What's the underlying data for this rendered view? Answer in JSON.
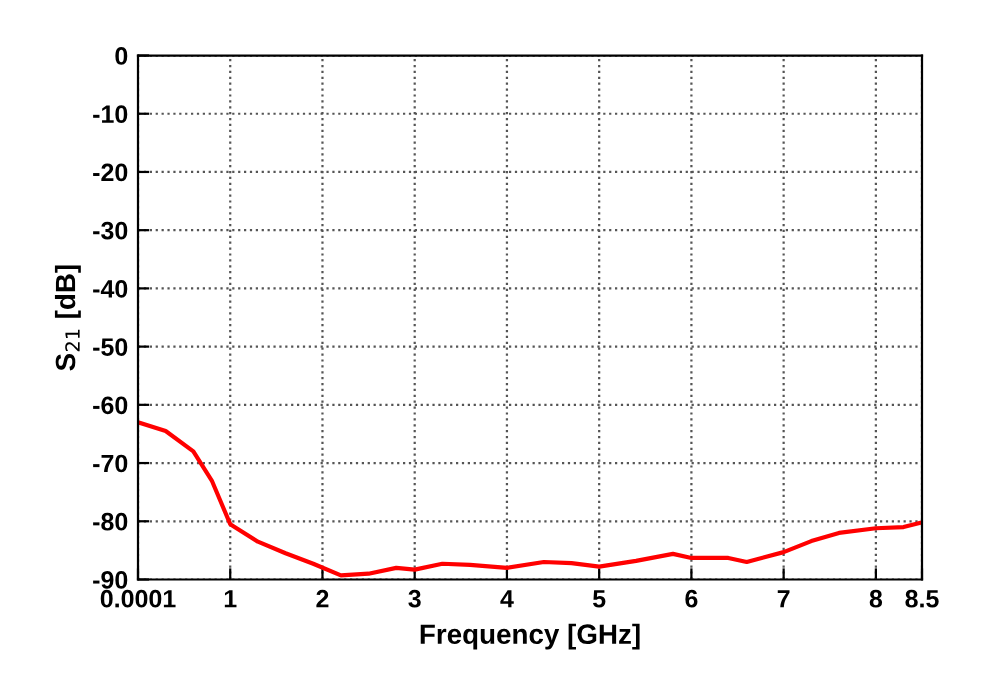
{
  "chart_data": {
    "type": "line",
    "xlabel": "Frequency [GHz]",
    "ylabel": "S$_{21}$ [dB]",
    "xlim": [
      0.0001,
      8.5
    ],
    "xticks": [
      {
        "value": 0.0001,
        "label": "0.0001"
      },
      1,
      2,
      3,
      4,
      5,
      6,
      7,
      8,
      8.5
    ],
    "ylim": [
      -90,
      0
    ],
    "yticks": [
      -90,
      -80,
      -70,
      -60,
      -50,
      -40,
      -30,
      -20,
      -10,
      0
    ],
    "grid": true,
    "legend": false,
    "marker": "none",
    "line_style": "solid",
    "series": [
      {
        "color": "#ff0000",
        "x": [
          0.0001,
          0.3,
          0.6,
          0.8,
          1.0,
          1.3,
          1.6,
          1.9,
          2.2,
          2.5,
          2.8,
          3.0,
          3.3,
          3.6,
          4.0,
          4.4,
          4.7,
          5.0,
          5.4,
          5.8,
          6.0,
          6.4,
          6.6,
          7.0,
          7.3,
          7.6,
          8.0,
          8.3,
          8.5
        ],
        "values": [
          -63,
          -64.5,
          -68,
          -73,
          -80.5,
          -83.5,
          -85.5,
          -87.3,
          -89.3,
          -89,
          -88,
          -88.3,
          -87.3,
          -87.5,
          -88,
          -87,
          -87.2,
          -87.8,
          -86.8,
          -85.6,
          -86.3,
          -86.3,
          -87,
          -85.3,
          -83.4,
          -82,
          -81.2,
          -81,
          -80.2
        ]
      }
    ]
  }
}
